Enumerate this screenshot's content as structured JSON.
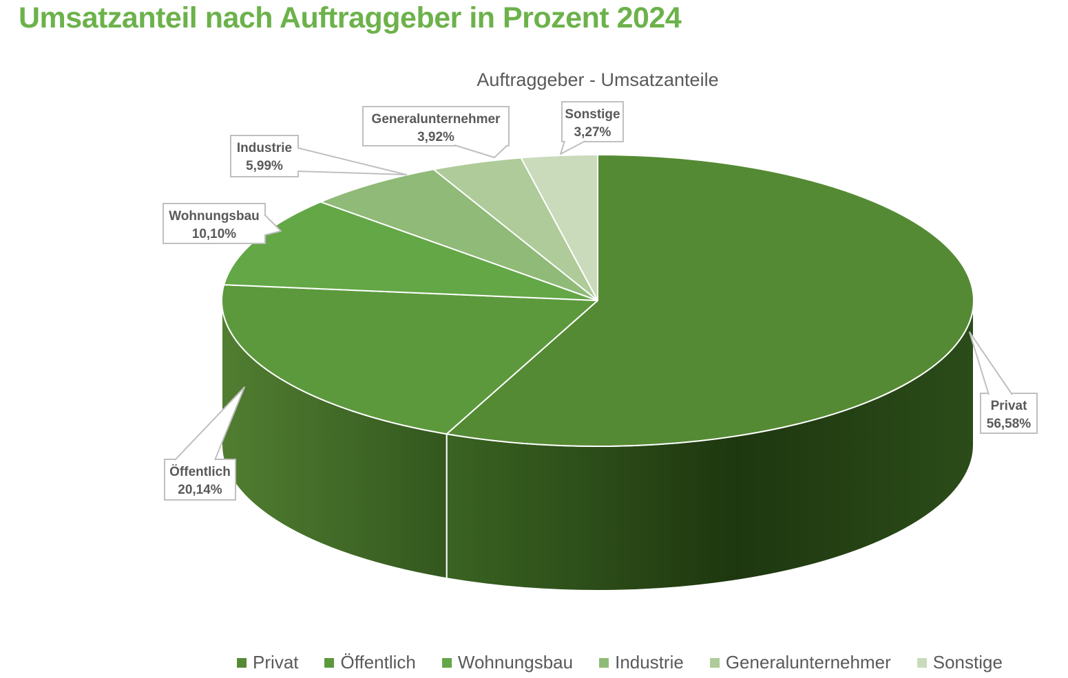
{
  "page_title": "Umsatzanteil nach Auftraggeber in Prozent 2024",
  "chart": {
    "subtitle": "Auftraggeber - Umsatzanteile",
    "title_color": "#6CB24B",
    "text_color": "#595959",
    "callout_border_color": "#BFBFBF",
    "callout_fill": "#FFFFFF",
    "slice_outline": "#FFFFFF"
  },
  "chart_data": {
    "type": "pie",
    "style": "3d",
    "title": "Auftraggeber - Umsatzanteile",
    "unit": "percent",
    "legend_position": "bottom",
    "direction": "clockwise",
    "start_angle_deg": 0,
    "categories": [
      "Privat",
      "Öffentlich",
      "Wohnungsbau",
      "Industrie",
      "Generalunternehmer",
      "Sonstige"
    ],
    "values": [
      56.58,
      20.14,
      10.1,
      5.99,
      3.92,
      3.27
    ],
    "value_labels": [
      "56,58%",
      "20,14%",
      "10,10%",
      "5,99%",
      "3,92%",
      "3,27%"
    ],
    "colors": [
      "#558A34",
      "#5C993D",
      "#63A746",
      "#8FBA77",
      "#AECB99",
      "#CADBBC"
    ]
  }
}
